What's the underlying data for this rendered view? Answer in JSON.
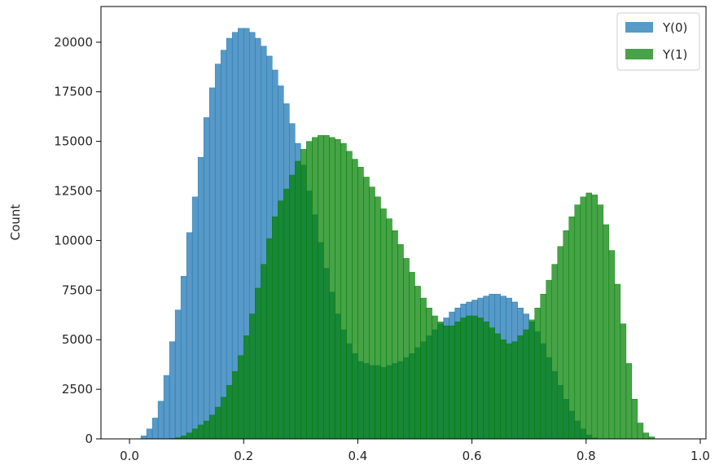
{
  "chart_data": {
    "type": "bar",
    "ylabel": "Count",
    "xlim": [
      -0.05,
      1.01
    ],
    "ylim": [
      0,
      21800
    ],
    "x_ticks": [
      0.0,
      0.2,
      0.4,
      0.6,
      0.8,
      1.0
    ],
    "x_tick_labels": [
      "0.0",
      "0.2",
      "0.4",
      "0.6",
      "0.8",
      "1.0"
    ],
    "y_ticks": [
      0,
      2500,
      5000,
      7500,
      10000,
      12500,
      15000,
      17500,
      20000
    ],
    "y_tick_labels": [
      "0",
      "2500",
      "5000",
      "7500",
      "10000",
      "12500",
      "15000",
      "17500",
      "20000"
    ],
    "legend_position": "top-right",
    "grid": false,
    "bin_width": 0.01,
    "x": [
      0.005,
      0.015,
      0.025,
      0.035,
      0.045,
      0.055,
      0.065,
      0.075,
      0.085,
      0.095,
      0.105,
      0.115,
      0.125,
      0.135,
      0.145,
      0.155,
      0.165,
      0.175,
      0.185,
      0.195,
      0.205,
      0.215,
      0.225,
      0.235,
      0.245,
      0.255,
      0.265,
      0.275,
      0.285,
      0.295,
      0.305,
      0.315,
      0.325,
      0.335,
      0.345,
      0.355,
      0.365,
      0.375,
      0.385,
      0.395,
      0.405,
      0.415,
      0.425,
      0.435,
      0.445,
      0.455,
      0.465,
      0.475,
      0.485,
      0.495,
      0.505,
      0.515,
      0.525,
      0.535,
      0.545,
      0.555,
      0.565,
      0.575,
      0.585,
      0.595,
      0.605,
      0.615,
      0.625,
      0.635,
      0.645,
      0.655,
      0.665,
      0.675,
      0.685,
      0.695,
      0.705,
      0.715,
      0.725,
      0.735,
      0.745,
      0.755,
      0.765,
      0.775,
      0.785,
      0.795,
      0.805,
      0.815,
      0.825,
      0.835,
      0.845,
      0.855,
      0.865,
      0.875,
      0.885,
      0.895,
      0.905,
      0.915,
      0.925,
      0.935,
      0.945,
      0.955,
      0.965,
      0.975,
      0.985,
      0.995
    ],
    "series": [
      {
        "name": "Y(0)",
        "color": "#1f77b4",
        "values": [
          0,
          0,
          150,
          500,
          1050,
          1900,
          3200,
          4900,
          6500,
          8200,
          10400,
          12200,
          14200,
          16200,
          17700,
          18900,
          19600,
          20200,
          20500,
          20700,
          20700,
          20500,
          20200,
          19800,
          19300,
          18600,
          17800,
          16900,
          15900,
          14900,
          13800,
          12500,
          11300,
          9900,
          8600,
          7400,
          6300,
          5500,
          4800,
          4300,
          3900,
          3800,
          3700,
          3700,
          3600,
          3700,
          3800,
          3900,
          4100,
          4300,
          4600,
          4900,
          5200,
          5500,
          5800,
          6100,
          6400,
          6600,
          6800,
          6900,
          7000,
          7100,
          7200,
          7300,
          7300,
          7200,
          7100,
          6900,
          6600,
          6300,
          5900,
          5400,
          4800,
          4100,
          3400,
          2700,
          2000,
          1400,
          900,
          500,
          200,
          50,
          0,
          0,
          0,
          0,
          0,
          0,
          0,
          0,
          0,
          0,
          0,
          0,
          0,
          0,
          0,
          0,
          0,
          0
        ]
      },
      {
        "name": "Y(1)",
        "color": "#008000",
        "values": [
          0,
          0,
          0,
          0,
          0,
          0,
          0,
          20,
          60,
          150,
          300,
          500,
          700,
          900,
          1200,
          1600,
          2100,
          2700,
          3400,
          4200,
          5200,
          6300,
          7600,
          8800,
          10100,
          11200,
          12000,
          12600,
          13300,
          14000,
          14600,
          15000,
          15200,
          15300,
          15300,
          15200,
          15100,
          14900,
          14500,
          14100,
          13700,
          13200,
          12700,
          12200,
          11600,
          11100,
          10500,
          9800,
          9100,
          8400,
          7700,
          7100,
          6600,
          6200,
          5900,
          5700,
          5700,
          5900,
          6100,
          6200,
          6200,
          6100,
          5900,
          5600,
          5300,
          5000,
          4800,
          4900,
          5200,
          5500,
          6000,
          6600,
          7300,
          8000,
          8800,
          9700,
          10500,
          11200,
          11800,
          12200,
          12400,
          12300,
          11800,
          10800,
          9500,
          7800,
          5800,
          3800,
          2000,
          800,
          300,
          100,
          0,
          0,
          0,
          0,
          0,
          0,
          0,
          0
        ]
      }
    ]
  }
}
